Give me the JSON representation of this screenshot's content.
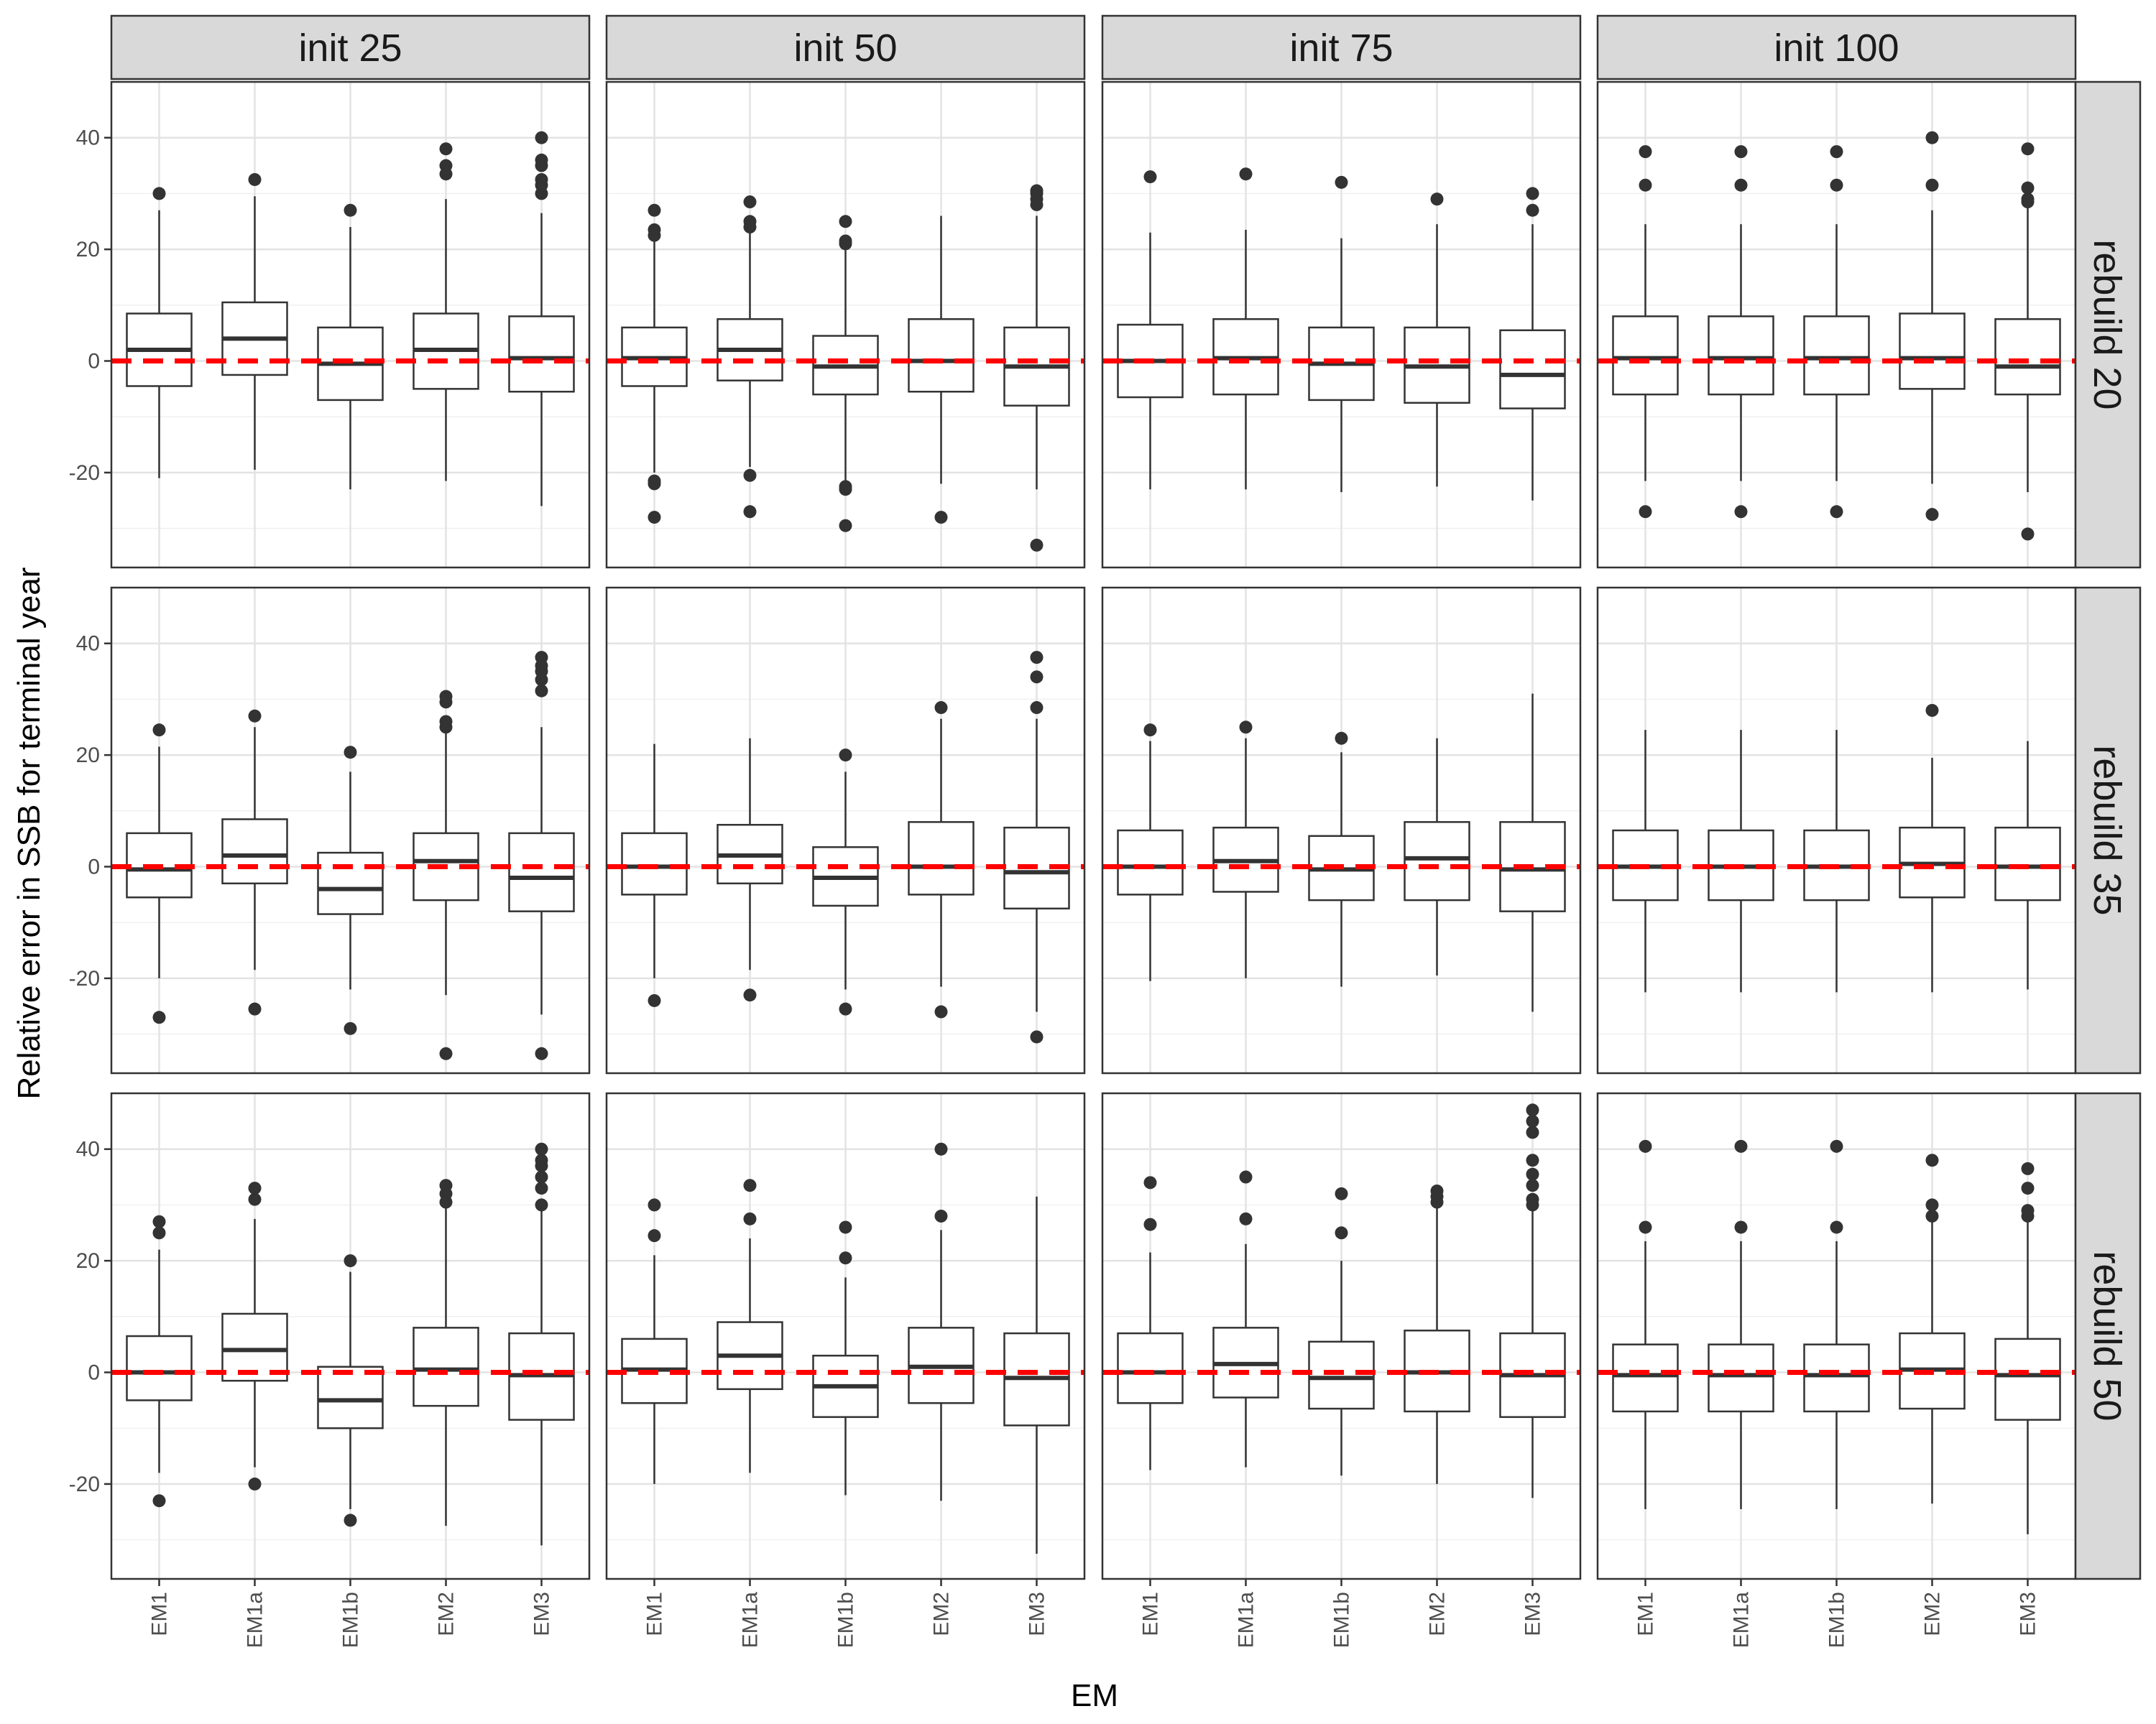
{
  "chart_data": {
    "type": "boxplot",
    "xlabel": "EM",
    "ylabel": "Relative error in SSB for terminal year",
    "ylim": [
      -37,
      50
    ],
    "yticks": [
      -20,
      0,
      20,
      40
    ],
    "reference_line": {
      "y": 0,
      "color": "#ff0000",
      "style": "dashed"
    },
    "grid": true,
    "facet_cols": [
      "init 25",
      "init 50",
      "init 75",
      "init 100"
    ],
    "facet_rows": [
      "rebuild 20",
      "rebuild 35",
      "rebuild 50"
    ],
    "categories": [
      "EM1",
      "EM1a",
      "EM1b",
      "EM2",
      "EM3"
    ],
    "panels": [
      {
        "row": 0,
        "col": 0,
        "boxes": [
          {
            "lw": -21,
            "q1": -4.5,
            "med": 2,
            "q3": 8.5,
            "uw": 27,
            "out": [
              30
            ]
          },
          {
            "lw": -19.5,
            "q1": -2.5,
            "med": 4,
            "q3": 10.5,
            "uw": 29.5,
            "out": [
              32.5
            ]
          },
          {
            "lw": -23,
            "q1": -7,
            "med": -0.5,
            "q3": 6,
            "uw": 24,
            "out": [
              27
            ]
          },
          {
            "lw": -21.5,
            "q1": -5,
            "med": 2,
            "q3": 8.5,
            "uw": 29,
            "out": [
              33.5,
              35,
              38
            ]
          },
          {
            "lw": -26,
            "q1": -5.5,
            "med": 0.5,
            "q3": 8,
            "uw": 26.5,
            "out": [
              30,
              31.5,
              32.5,
              35,
              36,
              40
            ]
          }
        ]
      },
      {
        "row": 0,
        "col": 1,
        "boxes": [
          {
            "lw": -20,
            "q1": -4.5,
            "med": 0.5,
            "q3": 6,
            "uw": 21.5,
            "out": [
              -28,
              -21.5,
              -22,
              22.5,
              23.5,
              27
            ]
          },
          {
            "lw": -19,
            "q1": -3.5,
            "med": 2,
            "q3": 7.5,
            "uw": 23,
            "out": [
              -27,
              -20.5,
              24,
              25,
              28.5
            ]
          },
          {
            "lw": -21.5,
            "q1": -6,
            "med": -1,
            "q3": 4.5,
            "uw": 20,
            "out": [
              -29.5,
              -23,
              -22.5,
              21,
              21.5,
              25
            ]
          },
          {
            "lw": -22,
            "q1": -5.5,
            "med": 0,
            "q3": 7.5,
            "uw": 26,
            "out": [
              -28
            ]
          },
          {
            "lw": -23,
            "q1": -8,
            "med": -1,
            "q3": 6,
            "uw": 26,
            "out": [
              -33,
              28,
              29,
              30,
              30.5
            ]
          }
        ]
      },
      {
        "row": 0,
        "col": 2,
        "boxes": [
          {
            "lw": -23,
            "q1": -6.5,
            "med": 0,
            "q3": 6.5,
            "uw": 23,
            "out": [
              33
            ]
          },
          {
            "lw": -23,
            "q1": -6,
            "med": 0.5,
            "q3": 7.5,
            "uw": 23.5,
            "out": [
              33.5
            ]
          },
          {
            "lw": -23.5,
            "q1": -7,
            "med": -0.5,
            "q3": 6,
            "uw": 22,
            "out": [
              32
            ]
          },
          {
            "lw": -22.5,
            "q1": -7.5,
            "med": -1,
            "q3": 6,
            "uw": 24.5,
            "out": [
              29
            ]
          },
          {
            "lw": -25,
            "q1": -8.5,
            "med": -2.5,
            "q3": 5.5,
            "uw": 24.5,
            "out": [
              27,
              30
            ]
          }
        ]
      },
      {
        "row": 0,
        "col": 3,
        "boxes": [
          {
            "lw": -21.5,
            "q1": -6,
            "med": 0.5,
            "q3": 8,
            "uw": 24.5,
            "out": [
              -27,
              31.5,
              37.5
            ]
          },
          {
            "lw": -21.5,
            "q1": -6,
            "med": 0.5,
            "q3": 8,
            "uw": 24.5,
            "out": [
              -27,
              31.5,
              37.5
            ]
          },
          {
            "lw": -21.5,
            "q1": -6,
            "med": 0.5,
            "q3": 8,
            "uw": 24.5,
            "out": [
              -27,
              31.5,
              37.5
            ]
          },
          {
            "lw": -22,
            "q1": -5,
            "med": 0.5,
            "q3": 8.5,
            "uw": 27,
            "out": [
              -27.5,
              31.5,
              40
            ]
          },
          {
            "lw": -23.5,
            "q1": -6,
            "med": -1,
            "q3": 7.5,
            "uw": 27.5,
            "out": [
              -31,
              28.5,
              29,
              31,
              38
            ]
          }
        ]
      },
      {
        "row": 1,
        "col": 0,
        "boxes": [
          {
            "lw": -20,
            "q1": -5.5,
            "med": -0.5,
            "q3": 6,
            "uw": 21.5,
            "out": [
              -27,
              24.5
            ]
          },
          {
            "lw": -18.5,
            "q1": -3,
            "med": 2,
            "q3": 8.5,
            "uw": 25,
            "out": [
              -25.5,
              27
            ]
          },
          {
            "lw": -22,
            "q1": -8.5,
            "med": -4,
            "q3": 2.5,
            "uw": 17,
            "out": [
              -29,
              20.5
            ]
          },
          {
            "lw": -23,
            "q1": -6,
            "med": 1,
            "q3": 6,
            "uw": 24.5,
            "out": [
              -33.5,
              25,
              26,
              29.5,
              30.5
            ]
          },
          {
            "lw": -26.5,
            "q1": -8,
            "med": -2,
            "q3": 6,
            "uw": 25,
            "out": [
              -33.5,
              31.5,
              33.5,
              35,
              36,
              37.5
            ]
          }
        ]
      },
      {
        "row": 1,
        "col": 1,
        "boxes": [
          {
            "lw": -20,
            "q1": -5,
            "med": 0,
            "q3": 6,
            "uw": 22,
            "out": [
              -24
            ]
          },
          {
            "lw": -18.5,
            "q1": -3,
            "med": 2,
            "q3": 7.5,
            "uw": 23,
            "out": [
              -23
            ]
          },
          {
            "lw": -22,
            "q1": -7,
            "med": -2,
            "q3": 3.5,
            "uw": 17,
            "out": [
              -25.5,
              20
            ]
          },
          {
            "lw": -21.5,
            "q1": -5,
            "med": 0,
            "q3": 8,
            "uw": 26.5,
            "out": [
              -26,
              28.5
            ]
          },
          {
            "lw": -26,
            "q1": -7.5,
            "med": -1,
            "q3": 7,
            "uw": 26.5,
            "out": [
              -30.5,
              28.5,
              34,
              37.5
            ]
          }
        ]
      },
      {
        "row": 1,
        "col": 2,
        "boxes": [
          {
            "lw": -20.5,
            "q1": -5,
            "med": 0,
            "q3": 6.5,
            "uw": 22.5,
            "out": [
              24.5
            ]
          },
          {
            "lw": -20,
            "q1": -4.5,
            "med": 1,
            "q3": 7,
            "uw": 23,
            "out": [
              25
            ]
          },
          {
            "lw": -21.5,
            "q1": -6,
            "med": -0.5,
            "q3": 5.5,
            "uw": 20.5,
            "out": [
              23
            ]
          },
          {
            "lw": -19.5,
            "q1": -6,
            "med": 1.5,
            "q3": 8,
            "uw": 23,
            "out": []
          },
          {
            "lw": -26,
            "q1": -8,
            "med": -0.5,
            "q3": 8,
            "uw": 31,
            "out": []
          }
        ]
      },
      {
        "row": 1,
        "col": 3,
        "boxes": [
          {
            "lw": -22.5,
            "q1": -6,
            "med": 0,
            "q3": 6.5,
            "uw": 24.5,
            "out": []
          },
          {
            "lw": -22.5,
            "q1": -6,
            "med": 0,
            "q3": 6.5,
            "uw": 24.5,
            "out": []
          },
          {
            "lw": -22.5,
            "q1": -6,
            "med": 0,
            "q3": 6.5,
            "uw": 24.5,
            "out": []
          },
          {
            "lw": -22.5,
            "q1": -5.5,
            "med": 0.5,
            "q3": 7,
            "uw": 19.5,
            "out": [
              28
            ]
          },
          {
            "lw": -22,
            "q1": -6,
            "med": 0,
            "q3": 7,
            "uw": 22.5,
            "out": []
          }
        ]
      },
      {
        "row": 2,
        "col": 0,
        "boxes": [
          {
            "lw": -18,
            "q1": -5,
            "med": 0,
            "q3": 6.5,
            "uw": 22,
            "out": [
              -23,
              25,
              27
            ]
          },
          {
            "lw": -17,
            "q1": -1.5,
            "med": 4,
            "q3": 10.5,
            "uw": 27.5,
            "out": [
              -20,
              31,
              33
            ]
          },
          {
            "lw": -24.5,
            "q1": -10,
            "med": -5,
            "q3": 1,
            "uw": 18,
            "out": [
              -26.5,
              20
            ]
          },
          {
            "lw": -27.5,
            "q1": -6,
            "med": 0.5,
            "q3": 8,
            "uw": 29.5,
            "out": [
              30.5,
              32,
              33.5
            ]
          },
          {
            "lw": -31,
            "q1": -8.5,
            "med": -0.5,
            "q3": 7,
            "uw": 29,
            "out": [
              30,
              33,
              35,
              37,
              38,
              40
            ]
          }
        ]
      },
      {
        "row": 2,
        "col": 1,
        "boxes": [
          {
            "lw": -20,
            "q1": -5.5,
            "med": 0.5,
            "q3": 6,
            "uw": 21,
            "out": [
              24.5,
              30
            ]
          },
          {
            "lw": -18,
            "q1": -3,
            "med": 3,
            "q3": 9,
            "uw": 24,
            "out": [
              27.5,
              33.5
            ]
          },
          {
            "lw": -22,
            "q1": -8,
            "med": -2.5,
            "q3": 3,
            "uw": 17,
            "out": [
              20.5,
              26
            ]
          },
          {
            "lw": -23,
            "q1": -5.5,
            "med": 1,
            "q3": 8,
            "uw": 25.5,
            "out": [
              28,
              40
            ]
          },
          {
            "lw": -32.5,
            "q1": -9.5,
            "med": -1,
            "q3": 7,
            "uw": 31.5,
            "out": []
          }
        ]
      },
      {
        "row": 2,
        "col": 2,
        "boxes": [
          {
            "lw": -17.5,
            "q1": -5.5,
            "med": 0,
            "q3": 7,
            "uw": 21.5,
            "out": [
              26.5,
              34
            ]
          },
          {
            "lw": -17,
            "q1": -4.5,
            "med": 1.5,
            "q3": 8,
            "uw": 23,
            "out": [
              27.5,
              35
            ]
          },
          {
            "lw": -18.5,
            "q1": -6.5,
            "med": -1,
            "q3": 5.5,
            "uw": 20,
            "out": [
              25,
              32
            ]
          },
          {
            "lw": -20,
            "q1": -7,
            "med": 0,
            "q3": 7.5,
            "uw": 29.5,
            "out": [
              30.5,
              31.5,
              32.5
            ]
          },
          {
            "lw": -22.5,
            "q1": -8,
            "med": -0.5,
            "q3": 7,
            "uw": 29,
            "out": [
              30,
              31,
              33.5,
              35.5,
              38,
              43,
              45,
              47
            ]
          }
        ]
      },
      {
        "row": 2,
        "col": 3,
        "boxes": [
          {
            "lw": -24.5,
            "q1": -7,
            "med": -0.5,
            "q3": 5,
            "uw": 23.5,
            "out": [
              26,
              40.5
            ]
          },
          {
            "lw": -24.5,
            "q1": -7,
            "med": -0.5,
            "q3": 5,
            "uw": 23.5,
            "out": [
              26,
              40.5
            ]
          },
          {
            "lw": -24.5,
            "q1": -7,
            "med": -0.5,
            "q3": 5,
            "uw": 23.5,
            "out": [
              26,
              40.5
            ]
          },
          {
            "lw": -23.5,
            "q1": -6.5,
            "med": 0.5,
            "q3": 7,
            "uw": 27,
            "out": [
              28,
              30,
              38
            ]
          },
          {
            "lw": -29,
            "q1": -8.5,
            "med": -0.5,
            "q3": 6,
            "uw": 27,
            "out": [
              28,
              29,
              33,
              36.5
            ]
          }
        ]
      }
    ]
  }
}
